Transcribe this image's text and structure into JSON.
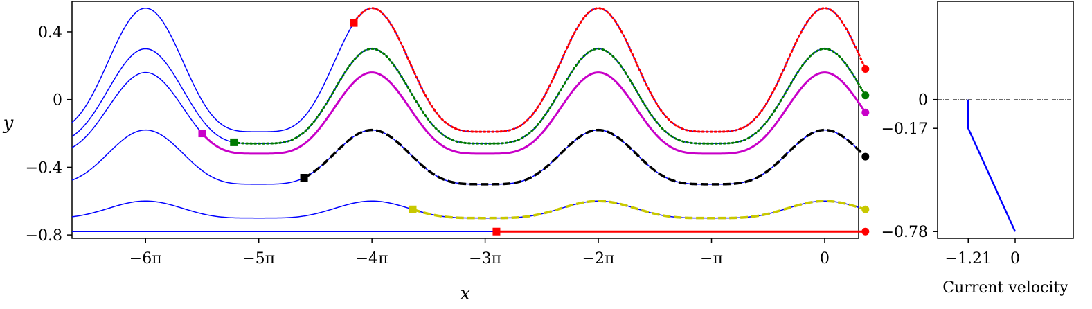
{
  "chart_data": [
    {
      "type": "line",
      "xlabel": "x",
      "ylabel": "y",
      "xlim": [
        -6.65,
        0.3
      ],
      "ylim": [
        -0.82,
        0.58
      ],
      "x_ticks": [
        {
          "value": -6,
          "label": "−6π"
        },
        {
          "value": -5,
          "label": "−5π"
        },
        {
          "value": -4,
          "label": "−4π"
        },
        {
          "value": -3,
          "label": "−3π"
        },
        {
          "value": -2,
          "label": "−2π"
        },
        {
          "value": -1,
          "label": "−π"
        },
        {
          "value": 0,
          "label": "0"
        }
      ],
      "y_ticks": [
        {
          "value": 0.4,
          "label": "0.4"
        },
        {
          "value": 0,
          "label": "0"
        },
        {
          "value": -0.4,
          "label": "−0.4"
        },
        {
          "value": -0.8,
          "label": "−0.8"
        }
      ],
      "x_unit": "π",
      "grid": false,
      "streamlines": [
        {
          "peak": 0.54,
          "trough": -0.19
        },
        {
          "peak": 0.3,
          "trough": -0.26
        },
        {
          "peak": 0.16,
          "trough": -0.32
        },
        {
          "peak": -0.18,
          "trough": -0.5
        },
        {
          "peak": -0.6,
          "trough": -0.7
        },
        {
          "peak": -0.78,
          "trough": -0.78
        }
      ],
      "trajectories": [
        {
          "streamline": 0,
          "x_start": -4.16,
          "x_end": 0.36,
          "color": "#ff0000",
          "style": "dotted"
        },
        {
          "streamline": 1,
          "x_start": -5.22,
          "x_end": 0.36,
          "color": "#007a00",
          "style": "dotted"
        },
        {
          "streamline": 2,
          "x_start": -5.5,
          "x_end": 0.36,
          "color": "#c800c8",
          "style": "solid"
        },
        {
          "streamline": 3,
          "x_start": -4.6,
          "x_end": 0.36,
          "color": "#000000",
          "style": "dashed"
        },
        {
          "streamline": 4,
          "x_start": -3.64,
          "x_end": 0.36,
          "color": "#c8c800",
          "style": "dashed"
        },
        {
          "streamline": 5,
          "x_start": -2.9,
          "x_end": 0.36,
          "color": "#ff0000",
          "style": "solid"
        }
      ]
    },
    {
      "type": "line",
      "xlabel": "Current velocity",
      "ylabel": "",
      "xlim": [
        -2.0,
        1.5
      ],
      "ylim": [
        -0.82,
        0.58
      ],
      "x_ticks": [
        {
          "value": -1.21,
          "label": "−1.21"
        },
        {
          "value": 0,
          "label": "0"
        }
      ],
      "y_ticks": [
        {
          "value": 0,
          "label": "0"
        },
        {
          "value": -0.17,
          "label": "−0.17"
        },
        {
          "value": -0.78,
          "label": "−0.78"
        }
      ],
      "reference_line_y": 0,
      "series": [
        {
          "x": [
            -1.21,
            -1.21,
            0
          ],
          "y": [
            0,
            -0.17,
            -0.78
          ],
          "color": "#0000ff"
        }
      ]
    }
  ]
}
